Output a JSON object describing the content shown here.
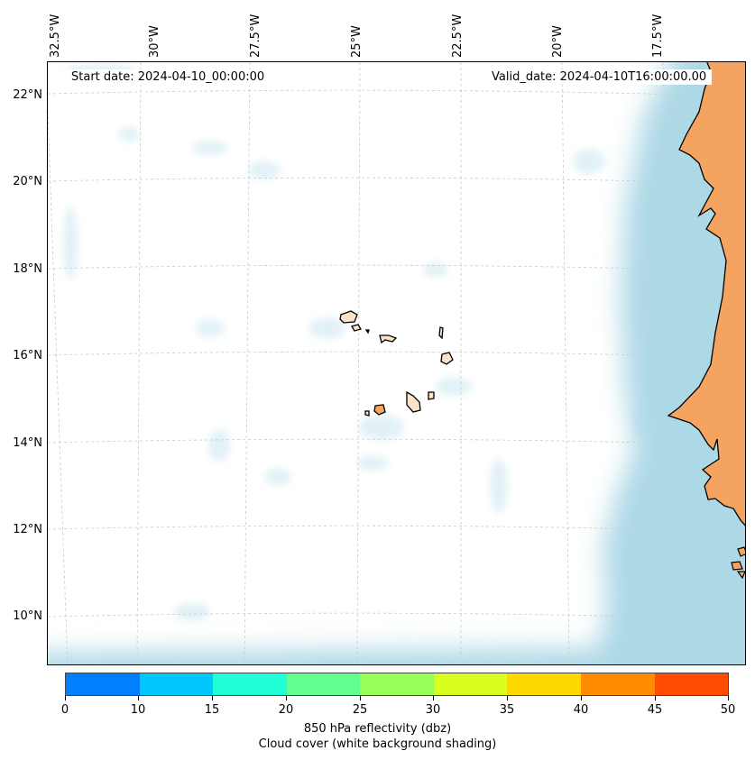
{
  "map": {
    "start_date": "Start date: 2024-04-10_00:00:00",
    "valid_date": "Valid_date: 2024-04-10T16:00:00.00",
    "longitude_labels": [
      "32.5°W",
      "30°W",
      "27.5°W",
      "25°W",
      "22.5°W",
      "20°W",
      "17.5°W"
    ],
    "latitude_labels": [
      "22°N",
      "20°N",
      "18°N",
      "16°N",
      "14°N",
      "12°N",
      "10°N"
    ],
    "colors": {
      "land": "#f4a460",
      "cloud": "#add8e6",
      "coastline": "#000000",
      "gridline": "#c8c8c8"
    }
  },
  "colorbar": {
    "tick_labels": [
      "0",
      "10",
      "15",
      "20",
      "25",
      "30",
      "35",
      "40",
      "45",
      "50"
    ],
    "colors": [
      "#0080ff",
      "#00c8ff",
      "#20ffd8",
      "#60ff90",
      "#98ff58",
      "#d8ff20",
      "#ffd800",
      "#ff8c00",
      "#ff4c00"
    ],
    "label": "850 hPa reflectivity (dbz)",
    "sublabel": "Cloud cover (white background shading)"
  }
}
